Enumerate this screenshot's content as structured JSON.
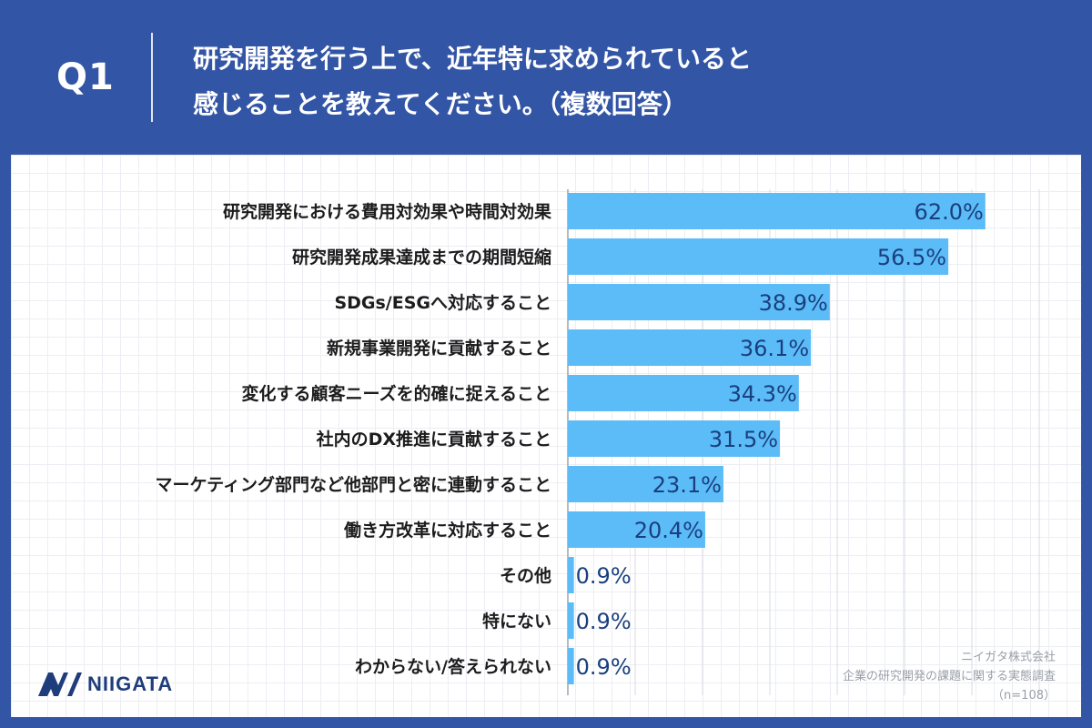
{
  "header": {
    "q_label": "Q1",
    "question_line1": "研究開発を行う上で、近年特に求められていると",
    "question_line2": "感じることを教えてください。（複数回答）"
  },
  "brand": {
    "logo_text": "NIIGATA",
    "logo_color": "#1f3d7a"
  },
  "source": {
    "company": "ニイガタ株式会社",
    "survey": "企業の研究開発の課題に関する実態調査",
    "sample": "（n=108）"
  },
  "colors": {
    "background": "#3355a5",
    "bar": "#5bbcf7",
    "value_text": "#1a3f7f"
  },
  "chart_data": {
    "type": "bar",
    "orientation": "horizontal",
    "categories": [
      "研究開発における費用対効果や時間対効果",
      "研究開発成果達成までの期間短縮",
      "SDGs/ESGへ対応すること",
      "新規事業開発に貢献すること",
      "変化する顧客ニーズを的確に捉えること",
      "社内のDX推進に貢献すること",
      "マーケティング部門など他部門と密に連動すること",
      "働き方改革に対応すること",
      "その他",
      "特にない",
      "わからない/答えられない"
    ],
    "values": [
      62.0,
      56.5,
      38.9,
      36.1,
      34.3,
      31.5,
      23.1,
      20.4,
      0.9,
      0.9,
      0.9
    ],
    "value_labels": [
      "62.0%",
      "56.5%",
      "38.9%",
      "36.1%",
      "34.3%",
      "31.5%",
      "23.1%",
      "20.4%",
      "0.9%",
      "0.9%",
      "0.9%"
    ],
    "xlim": [
      0,
      70
    ],
    "grid": true
  }
}
